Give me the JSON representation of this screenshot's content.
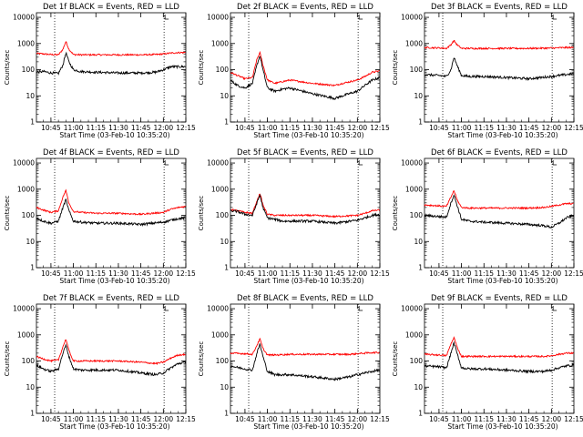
{
  "chart_data": {
    "type": "line",
    "yscale": "log",
    "ylim": [
      1,
      15000
    ],
    "yticks": [
      "1",
      "10",
      "100",
      "1000",
      "10000"
    ],
    "xticks": [
      "10:45",
      "11:00",
      "11:15",
      "11:30",
      "11:45",
      "12:00",
      "12:15"
    ],
    "xlabel": "Start Time (03-Feb-10 10:35:20)",
    "ylabel": "Counts/sec",
    "series_colors": {
      "events": "#000000",
      "lld": "#ff0000"
    },
    "panels": [
      {
        "title": "Det 1f BLACK = Events, RED = LLD",
        "x_time": [
          "10:35",
          "10:40",
          "10:45",
          "10:50",
          "10:53",
          "10:55",
          "10:57",
          "11:00",
          "11:05",
          "11:15",
          "11:30",
          "11:45",
          "11:55",
          "12:00",
          "12:05",
          "12:10",
          "12:15"
        ],
        "events": [
          80,
          85,
          75,
          72,
          150,
          450,
          200,
          100,
          85,
          80,
          75,
          75,
          80,
          100,
          130,
          130,
          130
        ],
        "lld": [
          420,
          400,
          380,
          370,
          600,
          1200,
          600,
          380,
          370,
          370,
          370,
          370,
          380,
          400,
          430,
          450,
          450
        ]
      },
      {
        "title": "Det 2f BLACK = Events, RED = LLD",
        "x_time": [
          "10:35",
          "10:40",
          "10:45",
          "10:50",
          "10:53",
          "10:55",
          "10:57",
          "11:00",
          "11:05",
          "11:10",
          "11:15",
          "11:30",
          "11:45",
          "11:50",
          "12:00",
          "12:05",
          "12:10",
          "12:15"
        ],
        "events": [
          40,
          25,
          20,
          30,
          150,
          350,
          100,
          20,
          15,
          18,
          20,
          12,
          8,
          10,
          15,
          25,
          40,
          50
        ],
        "lld": [
          80,
          60,
          45,
          50,
          250,
          450,
          150,
          40,
          30,
          35,
          40,
          30,
          25,
          30,
          40,
          55,
          80,
          90
        ]
      },
      {
        "title": "Det 3f BLACK = Events, RED = LLD",
        "x_time": [
          "10:35",
          "10:45",
          "10:50",
          "10:53",
          "10:55",
          "10:57",
          "11:00",
          "11:05",
          "11:15",
          "11:30",
          "11:45",
          "12:00",
          "12:10",
          "12:15"
        ],
        "events": [
          65,
          60,
          55,
          100,
          300,
          150,
          60,
          55,
          55,
          50,
          45,
          55,
          65,
          70
        ],
        "lld": [
          700,
          680,
          650,
          900,
          1300,
          900,
          650,
          650,
          650,
          650,
          650,
          670,
          700,
          700
        ]
      },
      {
        "title": "Det 4f BLACK = Events, RED = LLD",
        "x_time": [
          "10:35",
          "10:40",
          "10:45",
          "10:50",
          "10:53",
          "10:55",
          "10:57",
          "11:00",
          "11:05",
          "11:15",
          "11:30",
          "11:45",
          "12:00",
          "12:05",
          "12:10",
          "12:15"
        ],
        "events": [
          80,
          60,
          50,
          60,
          200,
          400,
          150,
          60,
          55,
          50,
          50,
          45,
          55,
          65,
          75,
          80
        ],
        "lld": [
          200,
          160,
          130,
          150,
          500,
          900,
          300,
          140,
          130,
          120,
          120,
          110,
          130,
          170,
          200,
          220
        ]
      },
      {
        "title": "Det 5f BLACK = Events, RED = LLD",
        "x_time": [
          "10:35",
          "10:40",
          "10:45",
          "10:50",
          "10:53",
          "10:55",
          "10:57",
          "11:00",
          "11:05",
          "11:10",
          "11:15",
          "11:30",
          "11:45",
          "12:00",
          "12:05",
          "12:10",
          "12:15"
        ],
        "events": [
          150,
          140,
          110,
          100,
          300,
          600,
          200,
          80,
          70,
          60,
          60,
          60,
          50,
          65,
          80,
          100,
          110
        ],
        "lld": [
          170,
          150,
          130,
          120,
          350,
          700,
          250,
          110,
          100,
          100,
          100,
          100,
          90,
          100,
          120,
          150,
          160
        ]
      },
      {
        "title": "Det 6f BLACK = Events, RED = LLD",
        "x_time": [
          "10:35",
          "10:45",
          "10:50",
          "10:53",
          "10:55",
          "10:57",
          "11:00",
          "11:05",
          "11:15",
          "11:30",
          "11:45",
          "11:55",
          "12:00",
          "12:05",
          "12:10",
          "12:15"
        ],
        "events": [
          100,
          90,
          85,
          300,
          600,
          250,
          70,
          60,
          55,
          50,
          45,
          40,
          35,
          50,
          80,
          100
        ],
        "lld": [
          250,
          230,
          220,
          500,
          900,
          400,
          200,
          190,
          190,
          190,
          190,
          200,
          220,
          250,
          280,
          280
        ]
      },
      {
        "title": "Det 7f BLACK = Events, RED = LLD",
        "x_time": [
          "10:35",
          "10:40",
          "10:45",
          "10:50",
          "10:53",
          "10:55",
          "10:57",
          "11:00",
          "11:05",
          "11:15",
          "11:30",
          "11:45",
          "11:55",
          "12:00",
          "12:05",
          "12:10",
          "12:15"
        ],
        "events": [
          70,
          50,
          40,
          50,
          200,
          400,
          150,
          50,
          45,
          45,
          45,
          35,
          30,
          35,
          55,
          80,
          90
        ],
        "lld": [
          150,
          120,
          100,
          110,
          350,
          700,
          250,
          100,
          100,
          100,
          100,
          90,
          80,
          90,
          130,
          170,
          180
        ]
      },
      {
        "title": "Det 8f BLACK = Events, RED = LLD",
        "x_time": [
          "10:35",
          "10:45",
          "10:50",
          "10:53",
          "10:55",
          "10:57",
          "11:00",
          "11:05",
          "11:15",
          "11:30",
          "11:45",
          "11:55",
          "12:00",
          "12:05",
          "12:10",
          "12:15"
        ],
        "events": [
          65,
          50,
          45,
          200,
          450,
          150,
          40,
          30,
          30,
          25,
          20,
          25,
          30,
          35,
          40,
          45
        ],
        "lld": [
          200,
          190,
          180,
          400,
          700,
          300,
          170,
          170,
          180,
          180,
          180,
          180,
          190,
          200,
          210,
          210
        ]
      },
      {
        "title": "Det 9f BLACK = Events, RED = LLD",
        "x_time": [
          "10:35",
          "10:45",
          "10:50",
          "10:53",
          "10:55",
          "10:57",
          "11:00",
          "11:05",
          "11:15",
          "11:30",
          "11:45",
          "11:55",
          "12:00",
          "12:05",
          "12:10",
          "12:15"
        ],
        "events": [
          65,
          60,
          55,
          200,
          500,
          200,
          55,
          50,
          50,
          45,
          40,
          40,
          45,
          55,
          65,
          70
        ],
        "lld": [
          180,
          170,
          160,
          450,
          800,
          350,
          150,
          150,
          150,
          150,
          150,
          150,
          160,
          180,
          200,
          200
        ]
      }
    ]
  }
}
